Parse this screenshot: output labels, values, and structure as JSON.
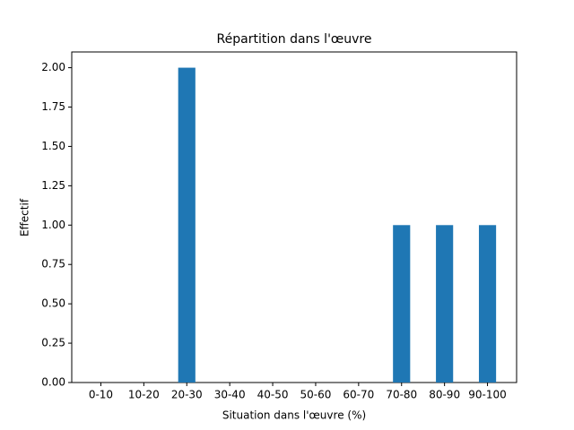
{
  "chart_data": {
    "type": "bar",
    "title": "Répartition dans l'œuvre",
    "x_label": "Situation dans l'œuvre (%)",
    "y_label": "Effectif",
    "categories": [
      "0-10",
      "10-20",
      "20-30",
      "30-40",
      "40-50",
      "50-60",
      "60-70",
      "70-80",
      "80-90",
      "90-100"
    ],
    "values": [
      0,
      0,
      2,
      0,
      0,
      0,
      0,
      1,
      1,
      1
    ],
    "color": "#1f77b4",
    "ylim": [
      0,
      2.1
    ],
    "yticks": [
      {
        "value": 0,
        "label": "0.00"
      },
      {
        "value": 0.25,
        "label": "0.25"
      },
      {
        "value": 0.5,
        "label": "0.50"
      },
      {
        "value": 0.75,
        "label": "0.75"
      },
      {
        "value": 1,
        "label": "1.00"
      },
      {
        "value": 1.25,
        "label": "1.25"
      },
      {
        "value": 1.5,
        "label": "1.50"
      },
      {
        "value": 1.75,
        "label": "1.75"
      },
      {
        "value": 2,
        "label": "2.00"
      }
    ],
    "grid": false
  }
}
